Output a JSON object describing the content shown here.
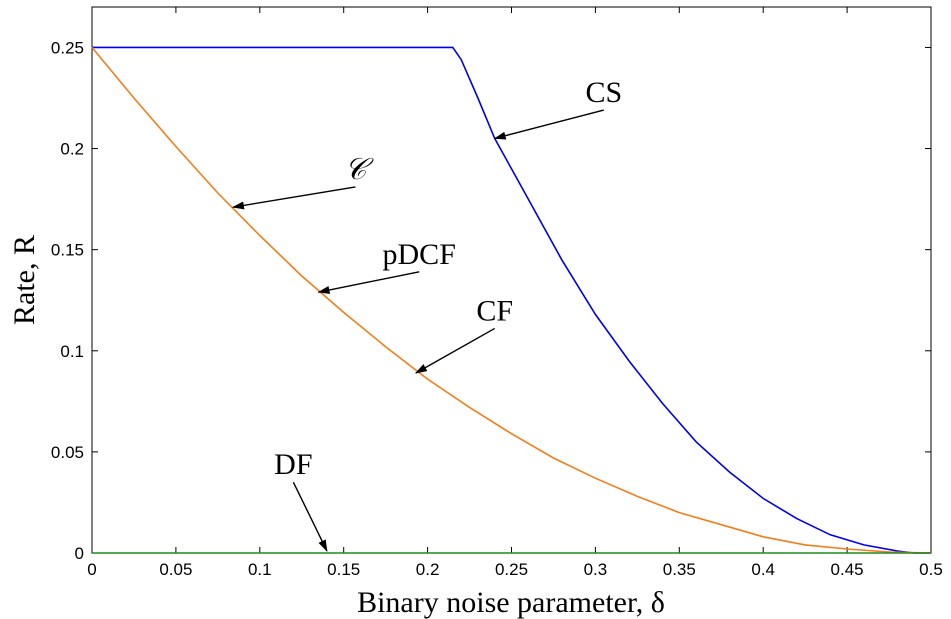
{
  "chart_data": {
    "type": "line",
    "title": "",
    "xlabel": "Binary noise parameter, δ",
    "ylabel": "Rate, R",
    "xlim": [
      0,
      0.5
    ],
    "ylim": [
      0,
      0.27
    ],
    "grid": false,
    "x_ticks": [
      "0",
      "0.05",
      "0.1",
      "0.15",
      "0.2",
      "0.25",
      "0.3",
      "0.35",
      "0.4",
      "0.45",
      "0.5"
    ],
    "y_ticks": [
      "0",
      "0.05",
      "0.1",
      "0.15",
      "0.2",
      "0.25"
    ],
    "series": [
      {
        "color": "#0000ee",
        "x": [
          0,
          0.05,
          0.1,
          0.15,
          0.2,
          0.21,
          0.215,
          0.22,
          0.23,
          0.24,
          0.25,
          0.26,
          0.28,
          0.3,
          0.32,
          0.34,
          0.36,
          0.38,
          0.4,
          0.42,
          0.44,
          0.46,
          0.48,
          0.49,
          0.5
        ],
        "y": [
          0.25,
          0.25,
          0.25,
          0.25,
          0.25,
          0.25,
          0.25,
          0.244,
          0.225,
          0.205,
          0.19,
          0.175,
          0.145,
          0.118,
          0.095,
          0.074,
          0.055,
          0.04,
          0.027,
          0.017,
          0.009,
          0.004,
          0.001,
          0.0,
          0.0
        ]
      },
      {
        "color": "#f07f1a",
        "x": [
          0,
          0.025,
          0.05,
          0.075,
          0.1,
          0.125,
          0.15,
          0.175,
          0.2,
          0.225,
          0.25,
          0.275,
          0.3,
          0.325,
          0.35,
          0.375,
          0.4,
          0.425,
          0.45,
          0.475,
          0.5
        ],
        "y": [
          0.25,
          0.225,
          0.201,
          0.178,
          0.157,
          0.137,
          0.119,
          0.102,
          0.086,
          0.072,
          0.059,
          0.047,
          0.037,
          0.028,
          0.02,
          0.014,
          0.008,
          0.004,
          0.002,
          0.0005,
          0.0
        ]
      },
      {
        "color": "#1f8a1f",
        "x": [
          0,
          0.5
        ],
        "y": [
          0,
          0
        ]
      }
    ],
    "annotations": [
      {
        "text": "CS",
        "text_x": 0.305,
        "text_y": 0.223,
        "arrow_to": [
          0.24,
          0.205
        ]
      },
      {
        "text": "𝒞",
        "text_x": 0.157,
        "text_y": 0.185,
        "arrow_to": [
          0.084,
          0.171
        ]
      },
      {
        "text": "pDCF",
        "text_x": 0.195,
        "text_y": 0.143,
        "arrow_to": [
          0.135,
          0.129
        ]
      },
      {
        "text": "CF",
        "text_x": 0.24,
        "text_y": 0.115,
        "arrow_to": [
          0.193,
          0.089
        ]
      },
      {
        "text": "DF",
        "text_x": 0.12,
        "text_y": 0.039,
        "arrow_to": [
          0.14,
          0.001
        ]
      }
    ]
  }
}
